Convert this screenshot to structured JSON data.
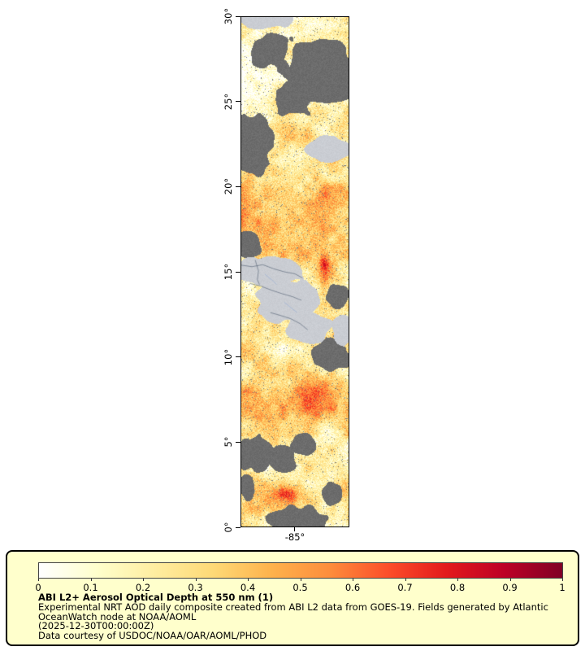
{
  "figure": {
    "legend": {
      "title": "ABI L2+ Aerosol Optical Depth at 550 nm (1)",
      "description": "Experimental NRT AOD daily composite created from ABI L2 data from GOES-19. Fields generated by Atlantic OceanWatch node at NOAA/AOML",
      "timestamp": "(2025-12-30T00:00:00Z)",
      "credit": "Data courtesy of USDOC/NOAA/OAR/AOML/PHOD",
      "background_color": "#ffffcc"
    }
  },
  "map": {
    "x_tick_labels": [
      "-85°"
    ],
    "y_tick_labels": [
      "30°",
      "25°",
      "20°",
      "15°",
      "10°",
      "5°",
      "0°"
    ],
    "colors": {
      "cloud_no_data_gray": "#696969",
      "no_retrieval_gray": "#c9ced6",
      "boundary_line": "#5f6c7d",
      "river_line": "#84a0d0"
    }
  },
  "colorbar": {
    "tick_labels": [
      "0",
      "0.1",
      "0.2",
      "0.3",
      "0.4",
      "0.5",
      "0.6",
      "0.7",
      "0.8",
      "0.9",
      "1"
    ],
    "gradient": [
      "#ffffff",
      "#ffffcc",
      "#ffeda0",
      "#fed976",
      "#feb24c",
      "#fd8d3c",
      "#fc4e2a",
      "#e31a1c",
      "#bd0026",
      "#800026"
    ]
  }
}
